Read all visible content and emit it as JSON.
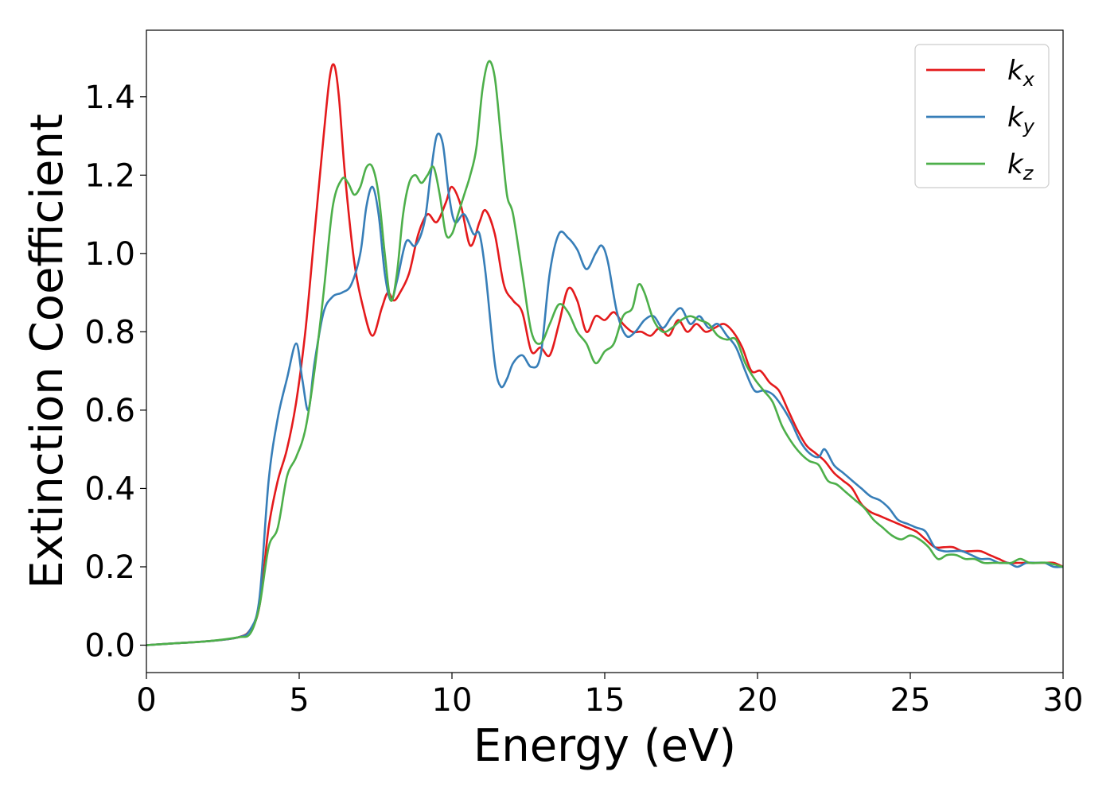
{
  "chart_data": {
    "type": "line",
    "title": "",
    "xlabel": "Energy (eV)",
    "ylabel": "Extinction Coefficient",
    "xlim": [
      0,
      30
    ],
    "ylim": [
      -0.07,
      1.57
    ],
    "xticks": [
      0,
      5,
      10,
      15,
      20,
      25,
      30
    ],
    "xtick_labels": [
      "0",
      "5",
      "10",
      "15",
      "20",
      "25",
      "30"
    ],
    "yticks": [
      0.0,
      0.2,
      0.4,
      0.6,
      0.8,
      1.0,
      1.2,
      1.4
    ],
    "ytick_labels": [
      "0.0",
      "0.2",
      "0.4",
      "0.6",
      "0.8",
      "1.0",
      "1.2",
      "1.4"
    ],
    "grid": false,
    "legend_position": "top-right",
    "series": [
      {
        "name": "kx",
        "label_base": "k",
        "label_sub": "x",
        "color": "#e41a1c",
        "x": [
          0,
          1,
          2,
          3,
          3.4,
          3.7,
          4.0,
          4.3,
          4.6,
          4.9,
          5.2,
          5.5,
          5.8,
          6.0,
          6.15,
          6.3,
          6.5,
          6.8,
          7.1,
          7.4,
          7.7,
          7.9,
          8.1,
          8.3,
          8.6,
          8.9,
          9.2,
          9.5,
          9.8,
          10.0,
          10.3,
          10.6,
          10.9,
          11.1,
          11.4,
          11.7,
          12.0,
          12.3,
          12.6,
          12.9,
          13.2,
          13.5,
          13.8,
          14.1,
          14.4,
          14.7,
          15.0,
          15.3,
          15.6,
          15.9,
          16.2,
          16.5,
          16.8,
          17.1,
          17.4,
          17.7,
          18.0,
          18.3,
          18.6,
          18.9,
          19.2,
          19.5,
          19.8,
          20.1,
          20.4,
          20.7,
          21.0,
          21.3,
          21.6,
          21.9,
          22.2,
          22.5,
          22.8,
          23.1,
          23.4,
          23.7,
          24.0,
          24.3,
          24.6,
          24.9,
          25.2,
          25.5,
          25.8,
          26.1,
          26.4,
          26.7,
          27.0,
          27.3,
          27.6,
          27.9,
          28.2,
          28.5,
          28.8,
          29.1,
          29.4,
          29.7,
          30.0
        ],
        "y": [
          0.0,
          0.005,
          0.01,
          0.02,
          0.04,
          0.1,
          0.3,
          0.42,
          0.5,
          0.62,
          0.8,
          1.05,
          1.3,
          1.45,
          1.48,
          1.4,
          1.2,
          0.98,
          0.86,
          0.79,
          0.86,
          0.9,
          0.88,
          0.9,
          0.95,
          1.05,
          1.1,
          1.08,
          1.13,
          1.17,
          1.12,
          1.02,
          1.08,
          1.11,
          1.05,
          0.92,
          0.88,
          0.85,
          0.75,
          0.76,
          0.74,
          0.82,
          0.91,
          0.88,
          0.8,
          0.84,
          0.83,
          0.85,
          0.82,
          0.8,
          0.8,
          0.79,
          0.81,
          0.79,
          0.83,
          0.8,
          0.82,
          0.8,
          0.81,
          0.82,
          0.8,
          0.76,
          0.7,
          0.7,
          0.67,
          0.65,
          0.6,
          0.55,
          0.51,
          0.49,
          0.47,
          0.44,
          0.42,
          0.4,
          0.36,
          0.34,
          0.33,
          0.32,
          0.31,
          0.3,
          0.29,
          0.27,
          0.25,
          0.25,
          0.25,
          0.24,
          0.24,
          0.24,
          0.23,
          0.22,
          0.21,
          0.21,
          0.21,
          0.21,
          0.21,
          0.21,
          0.2
        ]
      },
      {
        "name": "ky",
        "label_base": "k",
        "label_sub": "y",
        "color": "#377eb8",
        "x": [
          0,
          1,
          2,
          3,
          3.4,
          3.7,
          4.0,
          4.3,
          4.6,
          4.9,
          5.1,
          5.3,
          5.5,
          5.8,
          6.1,
          6.4,
          6.7,
          7.0,
          7.2,
          7.4,
          7.6,
          7.8,
          8.0,
          8.2,
          8.5,
          8.8,
          9.1,
          9.3,
          9.5,
          9.7,
          9.9,
          10.1,
          10.4,
          10.7,
          10.9,
          11.1,
          11.4,
          11.6,
          11.8,
          12.0,
          12.3,
          12.6,
          12.9,
          13.2,
          13.5,
          13.8,
          14.1,
          14.4,
          14.7,
          14.9,
          15.1,
          15.4,
          15.7,
          16.0,
          16.3,
          16.6,
          16.9,
          17.2,
          17.5,
          17.8,
          18.1,
          18.4,
          18.7,
          19.0,
          19.3,
          19.6,
          19.9,
          20.2,
          20.5,
          20.8,
          21.1,
          21.4,
          21.7,
          22.0,
          22.2,
          22.5,
          22.8,
          23.1,
          23.4,
          23.7,
          24.0,
          24.3,
          24.6,
          24.9,
          25.2,
          25.5,
          25.8,
          26.1,
          26.4,
          26.7,
          27.0,
          27.3,
          27.6,
          27.9,
          28.2,
          28.5,
          28.8,
          29.1,
          29.4,
          29.7,
          30.0
        ],
        "y": [
          0.0,
          0.005,
          0.01,
          0.02,
          0.04,
          0.12,
          0.42,
          0.58,
          0.68,
          0.77,
          0.68,
          0.6,
          0.72,
          0.85,
          0.89,
          0.9,
          0.92,
          1.0,
          1.12,
          1.17,
          1.1,
          0.95,
          0.88,
          0.93,
          1.03,
          1.02,
          1.08,
          1.2,
          1.3,
          1.28,
          1.15,
          1.08,
          1.1,
          1.05,
          1.05,
          0.95,
          0.72,
          0.66,
          0.68,
          0.72,
          0.74,
          0.71,
          0.74,
          0.95,
          1.05,
          1.04,
          1.01,
          0.96,
          1.0,
          1.02,
          0.98,
          0.85,
          0.79,
          0.8,
          0.83,
          0.84,
          0.81,
          0.84,
          0.86,
          0.82,
          0.84,
          0.81,
          0.82,
          0.79,
          0.76,
          0.7,
          0.65,
          0.65,
          0.64,
          0.61,
          0.57,
          0.52,
          0.49,
          0.48,
          0.5,
          0.46,
          0.44,
          0.42,
          0.4,
          0.38,
          0.37,
          0.35,
          0.32,
          0.31,
          0.3,
          0.29,
          0.25,
          0.24,
          0.24,
          0.24,
          0.23,
          0.22,
          0.22,
          0.21,
          0.21,
          0.2,
          0.21,
          0.21,
          0.21,
          0.2,
          0.2
        ]
      },
      {
        "name": "kz",
        "label_base": "k",
        "label_sub": "z",
        "color": "#4daf4a",
        "x": [
          0,
          1,
          2,
          3,
          3.4,
          3.7,
          4.0,
          4.3,
          4.6,
          4.9,
          5.2,
          5.5,
          5.8,
          6.1,
          6.4,
          6.6,
          6.8,
          7.0,
          7.2,
          7.4,
          7.6,
          7.8,
          8.0,
          8.2,
          8.4,
          8.6,
          8.8,
          9.0,
          9.2,
          9.4,
          9.6,
          9.8,
          10.0,
          10.2,
          10.4,
          10.6,
          10.8,
          11.0,
          11.2,
          11.4,
          11.6,
          11.8,
          12.0,
          12.3,
          12.6,
          12.9,
          13.2,
          13.5,
          13.8,
          14.1,
          14.4,
          14.7,
          15.0,
          15.3,
          15.6,
          15.9,
          16.1,
          16.3,
          16.6,
          16.9,
          17.2,
          17.5,
          17.8,
          18.1,
          18.4,
          18.7,
          19.0,
          19.3,
          19.6,
          19.9,
          20.2,
          20.5,
          20.8,
          21.1,
          21.4,
          21.7,
          22.0,
          22.3,
          22.6,
          22.9,
          23.2,
          23.5,
          23.8,
          24.1,
          24.4,
          24.7,
          25.0,
          25.3,
          25.6,
          25.9,
          26.2,
          26.5,
          26.8,
          27.1,
          27.4,
          27.7,
          28.0,
          28.3,
          28.6,
          28.9,
          29.2,
          29.5,
          30.0
        ],
        "y": [
          0.0,
          0.005,
          0.01,
          0.02,
          0.03,
          0.1,
          0.25,
          0.3,
          0.43,
          0.48,
          0.55,
          0.7,
          0.9,
          1.12,
          1.19,
          1.18,
          1.15,
          1.17,
          1.22,
          1.22,
          1.15,
          1.0,
          0.88,
          0.95,
          1.1,
          1.18,
          1.2,
          1.18,
          1.2,
          1.22,
          1.15,
          1.05,
          1.05,
          1.1,
          1.15,
          1.2,
          1.27,
          1.42,
          1.49,
          1.45,
          1.3,
          1.15,
          1.1,
          0.95,
          0.8,
          0.77,
          0.82,
          0.87,
          0.85,
          0.8,
          0.77,
          0.72,
          0.75,
          0.77,
          0.84,
          0.86,
          0.92,
          0.9,
          0.83,
          0.8,
          0.81,
          0.83,
          0.84,
          0.83,
          0.82,
          0.79,
          0.78,
          0.78,
          0.72,
          0.68,
          0.65,
          0.62,
          0.56,
          0.52,
          0.49,
          0.47,
          0.46,
          0.42,
          0.41,
          0.39,
          0.37,
          0.35,
          0.32,
          0.3,
          0.28,
          0.27,
          0.28,
          0.27,
          0.25,
          0.22,
          0.23,
          0.23,
          0.22,
          0.22,
          0.21,
          0.21,
          0.21,
          0.21,
          0.22,
          0.21,
          0.21,
          0.21,
          0.2
        ]
      }
    ]
  }
}
